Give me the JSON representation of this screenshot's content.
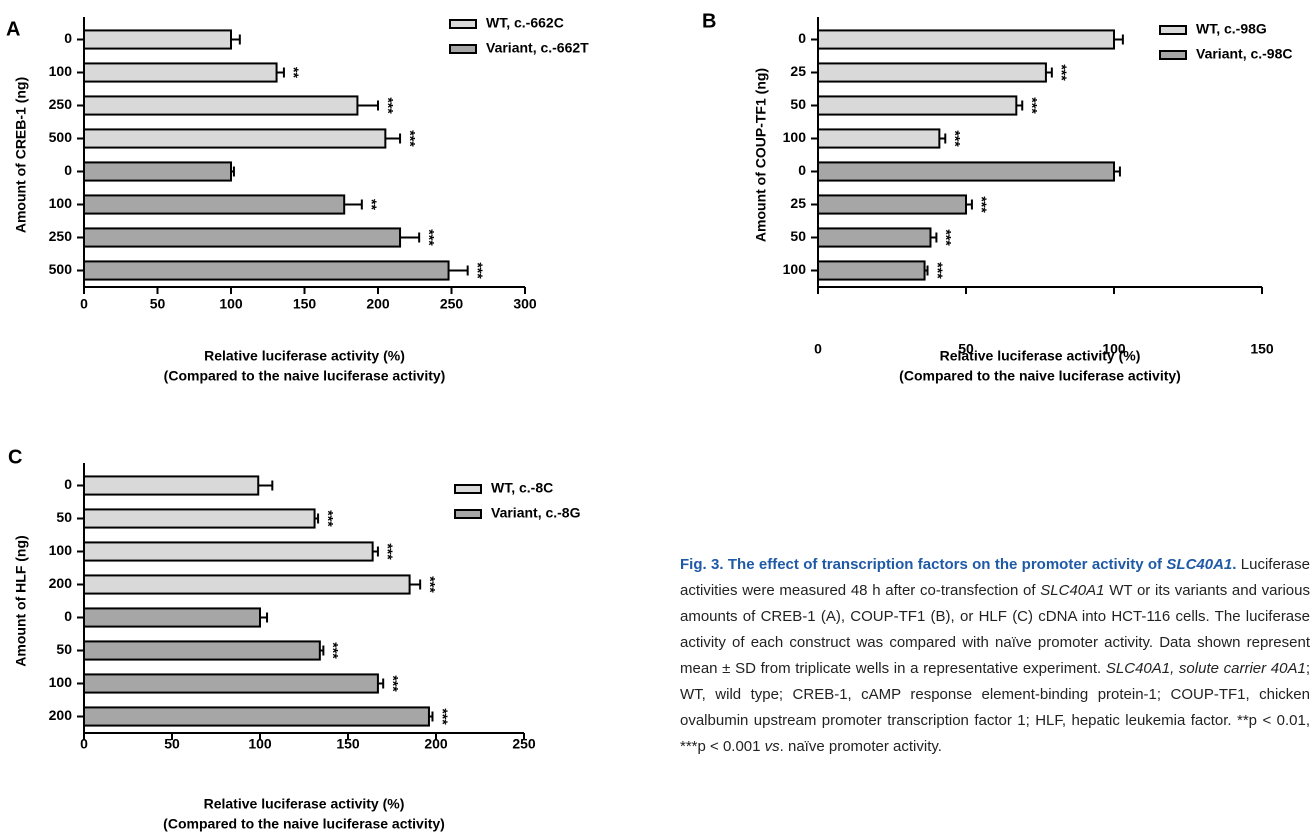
{
  "chart_data": [
    {
      "type": "bar",
      "orientation": "horizontal",
      "panel": "A",
      "categories": [
        "0",
        "100",
        "250",
        "500",
        "0",
        "100",
        "250",
        "500"
      ],
      "series": [
        {
          "name": "WT, c.-662C",
          "color": "#d9d9d9",
          "values": [
            100,
            131,
            186,
            205,
            null,
            null,
            null,
            null
          ],
          "errors": [
            6,
            5,
            14,
            10,
            null,
            null,
            null,
            null
          ],
          "annotations": [
            null,
            "**",
            "***",
            "***",
            null,
            null,
            null,
            null
          ]
        },
        {
          "name": "Variant, c.-662T",
          "color": "#a6a6a6",
          "values": [
            null,
            null,
            null,
            null,
            100,
            177,
            215,
            248
          ],
          "errors": [
            null,
            null,
            null,
            null,
            2,
            12,
            13,
            13
          ],
          "annotations": [
            null,
            null,
            null,
            null,
            null,
            "**",
            "***",
            "***"
          ]
        }
      ],
      "xlim": [
        0,
        300
      ],
      "xticks": [
        0,
        50,
        100,
        150,
        200,
        250,
        300
      ],
      "ylabel": "Amount of CREB-1 (ng)",
      "xlabel": [
        "Relative luciferase activity (%)",
        "(Compared to the naive luciferase activity)"
      ]
    },
    {
      "type": "bar",
      "orientation": "horizontal",
      "panel": "B",
      "categories": [
        "0",
        "25",
        "50",
        "100",
        "0",
        "25",
        "50",
        "100"
      ],
      "series": [
        {
          "name": "WT, c.-98G",
          "color": "#d9d9d9",
          "values": [
            100,
            77,
            67,
            41,
            null,
            null,
            null,
            null
          ],
          "errors": [
            3,
            2,
            2,
            2,
            null,
            null,
            null,
            null
          ],
          "annotations": [
            null,
            "***",
            "***",
            "***",
            null,
            null,
            null,
            null
          ]
        },
        {
          "name": "Variant, c.-98C",
          "color": "#a6a6a6",
          "values": [
            null,
            null,
            null,
            null,
            100,
            50,
            38,
            36
          ],
          "errors": [
            null,
            null,
            null,
            null,
            2,
            2,
            2,
            1
          ],
          "annotations": [
            null,
            null,
            null,
            null,
            null,
            "***",
            "***",
            "***"
          ]
        }
      ],
      "xlim": [
        0,
        150
      ],
      "xticks": [
        0,
        50,
        100,
        150
      ],
      "ylabel": "Amount of COUP-TF1 (ng)",
      "xlabel": [
        "Relative luciferase activity (%)",
        "(Compared to the naive luciferase activity)"
      ]
    },
    {
      "type": "bar",
      "orientation": "horizontal",
      "panel": "C",
      "categories": [
        "0",
        "50",
        "100",
        "200",
        "0",
        "50",
        "100",
        "200"
      ],
      "series": [
        {
          "name": "WT, c.-8C",
          "color": "#d9d9d9",
          "values": [
            99,
            131,
            164,
            185,
            null,
            null,
            null,
            null
          ],
          "errors": [
            8,
            2,
            3,
            6,
            null,
            null,
            null,
            null
          ],
          "annotations": [
            null,
            "***",
            "***",
            "***",
            null,
            null,
            null,
            null
          ]
        },
        {
          "name": "Variant, c.-8G",
          "color": "#a6a6a6",
          "values": [
            null,
            null,
            null,
            null,
            100,
            134,
            167,
            196
          ],
          "errors": [
            null,
            null,
            null,
            null,
            4,
            2,
            3,
            2
          ],
          "annotations": [
            null,
            null,
            null,
            null,
            null,
            "***",
            "***",
            "***"
          ]
        }
      ],
      "xlim": [
        0,
        250
      ],
      "xticks": [
        0,
        50,
        100,
        150,
        200,
        250
      ],
      "ylabel": "Amount of HLF (ng)",
      "xlabel": [
        "Relative luciferase activity (%)",
        "(Compared to the naive luciferase activity)"
      ]
    }
  ],
  "caption": {
    "title": [
      "Fig. 3. The effect of transcription factors on the promoter activity of ",
      "SLC40A1",
      "."
    ],
    "body": [
      " Luciferase activities were measured 48 h after co-transfection of ",
      "SLC40A1",
      " WT or its variants and various amounts of CREB-1 (A), COUP-TF1 (B), or HLF (C) cDNA into HCT-116 cells. The luciferase activity of each construct was compared with naïve promoter activity. Data shown represent mean ± SD from triplicate wells in a representative experiment. ",
      "SLC40A1, solute carrier 40A1",
      "; WT, wild type; CREB-1, cAMP response element-binding protein-1; COUP-TF1, chicken ovalbumin upstream promoter transcription factor 1; HLF, hepatic leukemia factor. **p < 0.01, ***p < 0.001 ",
      "vs",
      ". naïve promoter activity."
    ]
  }
}
